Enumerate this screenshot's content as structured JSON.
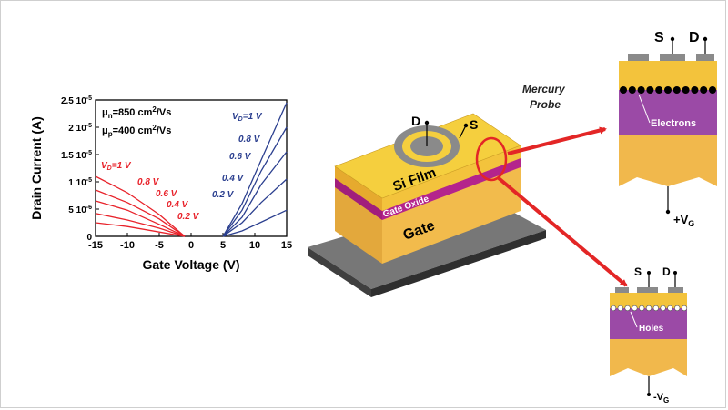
{
  "colors": {
    "n_curves": "#2b3f8f",
    "p_curves": "#e8222a",
    "si_film": "#f3c33c",
    "gate_block": "#f1b84c",
    "gate_oxide": "#b4248c",
    "channel_region": "#9b4aa6",
    "substrate_plate": "#5e5e5e",
    "probe_ring": "#8a8a8a",
    "arrow": "#e32626"
  },
  "chart_data": {
    "type": "line",
    "xlabel": "Gate Voltage (V)",
    "ylabel": "Drain Current (A)",
    "xlim": [
      -15,
      15
    ],
    "ylim": [
      0,
      2.5e-05
    ],
    "x_ticks": [
      "-15",
      "-10",
      "-5",
      "0",
      "5",
      "10",
      "15"
    ],
    "y_ticks": [
      {
        "mantissa": "0",
        "exp": ""
      },
      {
        "mantissa": "5 10",
        "exp": "-6"
      },
      {
        "mantissa": "1 10",
        "exp": "-5"
      },
      {
        "mantissa": "1.5 10",
        "exp": "-5"
      },
      {
        "mantissa": "2 10",
        "exp": "-5"
      },
      {
        "mantissa": "2.5 10",
        "exp": "-5"
      }
    ],
    "mobility": [
      {
        "symbol": "μ",
        "sub": "n",
        "text": "=850 cm",
        "sup": "2",
        "unit": "/Vs"
      },
      {
        "symbol": "μ",
        "sub": "p",
        "text": "=400 cm",
        "sup": "2",
        "unit": "/Vs"
      }
    ],
    "n_series": [
      {
        "vd": "0.2 V",
        "x": [
          5,
          8,
          11,
          15
        ],
        "y": [
          0,
          1e-06,
          2.6e-06,
          4.8e-06
        ]
      },
      {
        "vd": "0.4 V",
        "x": [
          5,
          8,
          11,
          15
        ],
        "y": [
          0,
          2.5e-06,
          6.2e-06,
          1.05e-05
        ]
      },
      {
        "vd": "0.6 V",
        "x": [
          5,
          8,
          11,
          15
        ],
        "y": [
          0,
          3.5e-06,
          9.5e-06,
          1.55e-05
        ]
      },
      {
        "vd": "0.8 V",
        "x": [
          5,
          8,
          11,
          15
        ],
        "y": [
          0,
          4.8e-06,
          1.2e-05,
          2e-05
        ]
      },
      {
        "vd": "1 V",
        "x": [
          5,
          8,
          11,
          15
        ],
        "y": [
          0,
          6e-06,
          1.4e-05,
          2.45e-05
        ]
      }
    ],
    "p_series": [
      {
        "vd": "0.2 V",
        "x": [
          -15,
          -10,
          -5,
          -1
        ],
        "y": [
          2.5e-06,
          1.8e-06,
          8e-07,
          0
        ]
      },
      {
        "vd": "0.4 V",
        "x": [
          -15,
          -10,
          -5,
          -1
        ],
        "y": [
          4.2e-06,
          3e-06,
          1.5e-06,
          0
        ]
      },
      {
        "vd": "0.6 V",
        "x": [
          -15,
          -10,
          -5,
          -1
        ],
        "y": [
          6.5e-06,
          4.8e-06,
          2.2e-06,
          0
        ]
      },
      {
        "vd": "0.8 V",
        "x": [
          -15,
          -10,
          -5,
          -1
        ],
        "y": [
          8.5e-06,
          6.2e-06,
          3.2e-06,
          0
        ]
      },
      {
        "vd": "1 V",
        "x": [
          -15,
          -10,
          -5,
          -1
        ],
        "y": [
          1.1e-05,
          8e-06,
          4e-06,
          0
        ]
      }
    ],
    "vd_prefix": "V",
    "vd_sub": "D",
    "vd_eq": "="
  },
  "device": {
    "drain_label": "D",
    "source_label": "S",
    "si_film_label": "Si Film",
    "gate_oxide_label": "Gate Oxide",
    "gate_label": "Gate"
  },
  "probe_label": [
    "Mercury",
    "Probe"
  ],
  "top_cross_section": {
    "source_label": "S",
    "drain_label": "D",
    "carrier_label": "Electrons",
    "bias_sign": "+V",
    "bias_sub": "G"
  },
  "bottom_cross_section": {
    "source_label": "S",
    "drain_label": "D",
    "carrier_label": "Holes",
    "bias_sign": "-V",
    "bias_sub": "G"
  }
}
